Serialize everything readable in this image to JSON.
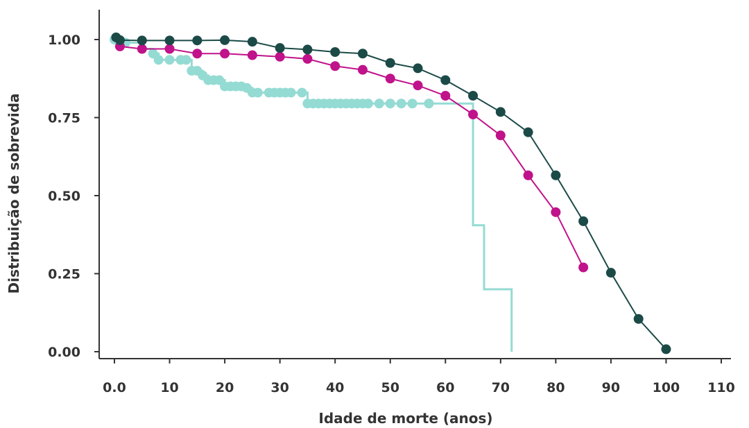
{
  "chart_data": {
    "type": "line",
    "title": "",
    "xlabel": "Idade de morte (anos)",
    "ylabel": "Distribuição de sobrevida",
    "xlim": [
      -2,
      112
    ],
    "ylim": [
      -0.015,
      1.1
    ],
    "x_ticks": [
      0,
      10,
      20,
      30,
      40,
      50,
      60,
      70,
      80,
      90,
      100,
      110
    ],
    "x_tick_labels": [
      "0.0",
      "10",
      "20",
      "30",
      "40",
      "50",
      "60",
      "70",
      "80",
      "90",
      "100",
      "110"
    ],
    "y_ticks": [
      0,
      0.25,
      0.5,
      0.75,
      1.0
    ],
    "y_tick_labels": [
      "0.00",
      "0.25",
      "0.50",
      "0.75",
      "1.00"
    ],
    "grid": false,
    "series": [
      {
        "kind": "step",
        "color": "#94dbd3",
        "points": [
          [
            0,
            1.0
          ],
          [
            2,
            0.99
          ],
          [
            5,
            0.97
          ],
          [
            7,
            0.955
          ],
          [
            8,
            0.935
          ],
          [
            10,
            0.935
          ],
          [
            12,
            0.935
          ],
          [
            13,
            0.935
          ],
          [
            14,
            0.9
          ],
          [
            15,
            0.9
          ],
          [
            16,
            0.885
          ],
          [
            17,
            0.87
          ],
          [
            18,
            0.87
          ],
          [
            19,
            0.87
          ],
          [
            20,
            0.85
          ],
          [
            21,
            0.85
          ],
          [
            22,
            0.85
          ],
          [
            23,
            0.85
          ],
          [
            24,
            0.845
          ],
          [
            25,
            0.83
          ],
          [
            26,
            0.83
          ],
          [
            28,
            0.83
          ],
          [
            29,
            0.83
          ],
          [
            30,
            0.83
          ],
          [
            31,
            0.83
          ],
          [
            32,
            0.83
          ],
          [
            34,
            0.83
          ],
          [
            35,
            0.795
          ],
          [
            36,
            0.795
          ],
          [
            37,
            0.795
          ],
          [
            38,
            0.795
          ],
          [
            39,
            0.795
          ],
          [
            40,
            0.795
          ],
          [
            41,
            0.795
          ],
          [
            42,
            0.795
          ],
          [
            43,
            0.795
          ],
          [
            44,
            0.795
          ],
          [
            45,
            0.795
          ],
          [
            46,
            0.795
          ],
          [
            48,
            0.795
          ],
          [
            50,
            0.795
          ],
          [
            52,
            0.795
          ],
          [
            54,
            0.795
          ],
          [
            57,
            0.795
          ],
          [
            65,
            0.405
          ],
          [
            67,
            0.2
          ],
          [
            72,
            0.0
          ]
        ],
        "markers": [
          0,
          2,
          5,
          7,
          8,
          10,
          12,
          13,
          14,
          15,
          16,
          17,
          18,
          19,
          20,
          21,
          22,
          23,
          24,
          25,
          26,
          28,
          29,
          30,
          31,
          32,
          34,
          35,
          36,
          37,
          38,
          39,
          40,
          41,
          42,
          43,
          44,
          45,
          46,
          48,
          50,
          52,
          54,
          57
        ]
      },
      {
        "kind": "line",
        "color": "#c0128a",
        "points": [
          [
            1,
            0.978
          ],
          [
            5,
            0.97
          ],
          [
            10,
            0.97
          ],
          [
            15,
            0.955
          ],
          [
            20,
            0.955
          ],
          [
            25,
            0.95
          ],
          [
            30,
            0.945
          ],
          [
            35,
            0.938
          ],
          [
            40,
            0.915
          ],
          [
            45,
            0.903
          ],
          [
            50,
            0.875
          ],
          [
            55,
            0.853
          ],
          [
            60,
            0.82
          ],
          [
            65,
            0.76
          ],
          [
            70,
            0.693
          ],
          [
            75,
            0.565
          ],
          [
            80,
            0.447
          ],
          [
            85,
            0.27
          ]
        ]
      },
      {
        "kind": "line",
        "color": "#1b4a47",
        "points": [
          [
            0.3,
            1.007
          ],
          [
            1,
            0.998
          ],
          [
            5,
            0.997
          ],
          [
            10,
            0.997
          ],
          [
            15,
            0.997
          ],
          [
            20,
            0.998
          ],
          [
            25,
            0.993
          ],
          [
            30,
            0.973
          ],
          [
            35,
            0.968
          ],
          [
            40,
            0.96
          ],
          [
            45,
            0.955
          ],
          [
            50,
            0.925
          ],
          [
            55,
            0.908
          ],
          [
            60,
            0.87
          ],
          [
            65,
            0.82
          ],
          [
            70,
            0.768
          ],
          [
            75,
            0.703
          ],
          [
            80,
            0.565
          ],
          [
            85,
            0.418
          ],
          [
            90,
            0.253
          ],
          [
            95,
            0.105
          ],
          [
            100,
            0.008
          ]
        ]
      }
    ]
  }
}
